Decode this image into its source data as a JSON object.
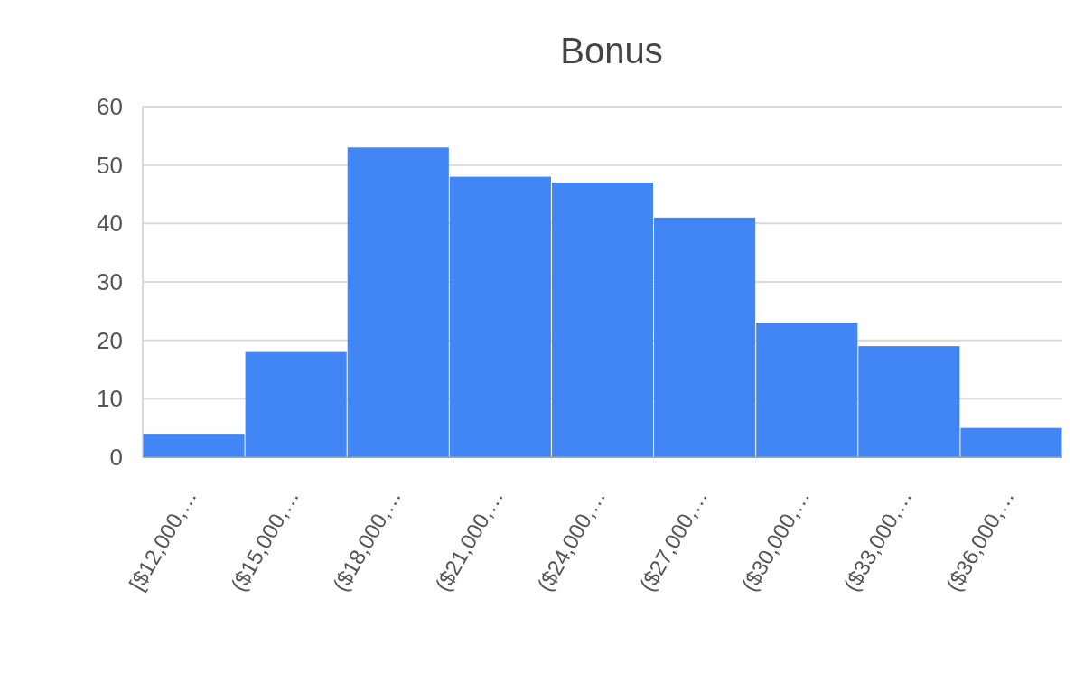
{
  "chart_data": {
    "type": "bar",
    "title": "Bonus",
    "categories": [
      "[$12,000,…",
      "($15,000,…",
      "($18,000,…",
      "($21,000,…",
      "($24,000,…",
      "($27,000,…",
      "($30,000,…",
      "($33,000,…",
      "($36,000,…"
    ],
    "values": [
      4,
      18,
      53,
      48,
      47,
      41,
      23,
      19,
      5
    ],
    "color": "#4285f4",
    "ylim": [
      0,
      60
    ],
    "yticks": [
      0,
      10,
      20,
      30,
      40,
      50,
      60
    ],
    "grid": "y"
  }
}
